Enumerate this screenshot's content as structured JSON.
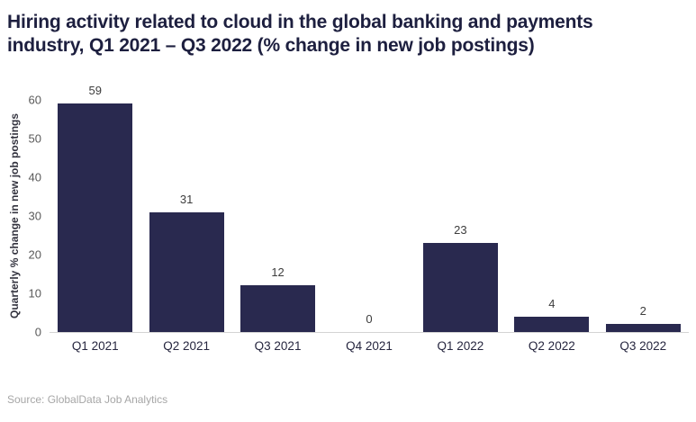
{
  "header": {
    "title": "Hiring activity related to cloud in the global banking and payments industry, Q1 2021 – Q3 2022 (% change in new job postings)"
  },
  "footer": {
    "source": "Source: GlobalData Job Analytics"
  },
  "colors": {
    "background": "#ffffff",
    "bar": "#29294f",
    "title_text": "#1d1f3f",
    "y_tick_text": "#595959",
    "value_label_text": "#3d3d3d",
    "x_label_text": "#26263f",
    "y_axis_title_text": "#33333f",
    "baseline": "#d4d4d4",
    "source_text": "#a6a6a6"
  },
  "chart_data": {
    "type": "bar",
    "title": "Hiring activity related to cloud in the global banking and payments industry, Q1 2021 – Q3 2022 (% change in new job postings)",
    "categories": [
      "Q1 2021",
      "Q2 2021",
      "Q3 2021",
      "Q4 2021",
      "Q1 2022",
      "Q2 2022",
      "Q3 2022"
    ],
    "values": [
      59,
      31,
      12,
      0,
      23,
      4,
      2
    ],
    "value_labels_shown": true,
    "xlabel": "",
    "ylabel": "Quarterly % change in new job postings",
    "ylim": [
      0,
      60
    ],
    "yticks": [
      0,
      10,
      20,
      30,
      40,
      50,
      60
    ],
    "grid": false,
    "legend": "none",
    "bar_color": "#29294f",
    "source": "Source: GlobalData Job Analytics"
  }
}
